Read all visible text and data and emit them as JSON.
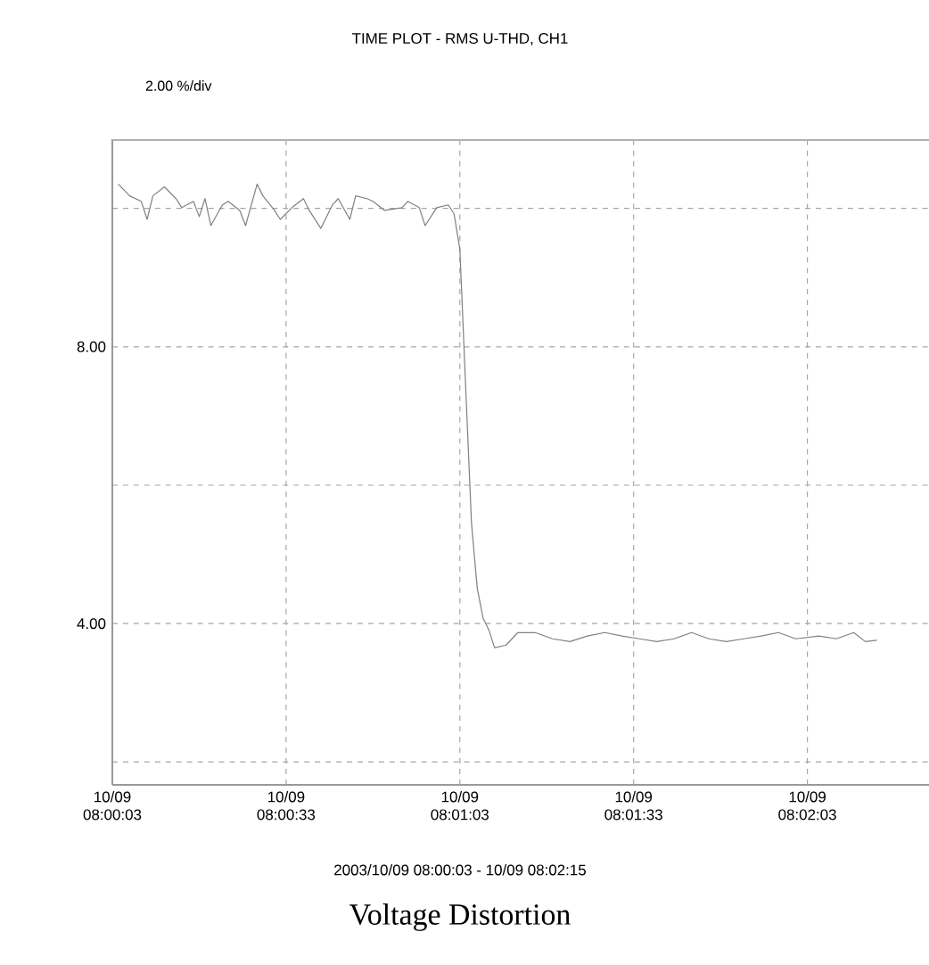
{
  "chart_data": {
    "type": "line",
    "title": "TIME PLOT - RMS  U-THD, CH1",
    "annotations": [
      "2.00 %/div",
      "2003/10/09 08:00:03 - 10/09 08:02:15",
      "Voltage Distortion"
    ],
    "xlim": [
      "2003-10-09T08:00:03",
      "2003-10-09T08:02:24"
    ],
    "ylim": [
      1.67,
      11
    ],
    "xticks": [
      {
        "value": "2003-10-09T08:00:03",
        "label": "10/09 08:00:03"
      },
      {
        "value": "2003-10-09T08:00:33",
        "label": "10/09 08:00:33"
      },
      {
        "value": "2003-10-09T08:01:03",
        "label": "10/09 08:01:03"
      },
      {
        "value": "2003-10-09T08:01:33",
        "label": "10/09 08:01:33"
      },
      {
        "value": "2003-10-09T08:02:03",
        "label": "10/09 08:02:03"
      }
    ],
    "yticks": [
      {
        "value": 2,
        "label": null
      },
      {
        "value": 4,
        "label": "4.00"
      },
      {
        "value": 6,
        "label": null
      },
      {
        "value": 8,
        "label": "8.00"
      },
      {
        "value": 10,
        "label": null
      }
    ],
    "grid": true,
    "marker": "none",
    "line_style": "solid",
    "series": [
      {
        "color": "#808080",
        "x": [
          "2003-10-09T08:00:04",
          "2003-10-09T08:00:06",
          "2003-10-09T08:00:08",
          "2003-10-09T08:00:09",
          "2003-10-09T08:00:10",
          "2003-10-09T08:00:12",
          "2003-10-09T08:00:14",
          "2003-10-09T08:00:15",
          "2003-10-09T08:00:17",
          "2003-10-09T08:00:18",
          "2003-10-09T08:00:19",
          "2003-10-09T08:00:20",
          "2003-10-09T08:00:22",
          "2003-10-09T08:00:23",
          "2003-10-09T08:00:25",
          "2003-10-09T08:00:26",
          "2003-10-09T08:00:28",
          "2003-10-09T08:00:29",
          "2003-10-09T08:00:31",
          "2003-10-09T08:00:32",
          "2003-10-09T08:00:34",
          "2003-10-09T08:00:36",
          "2003-10-09T08:00:37",
          "2003-10-09T08:00:39",
          "2003-10-09T08:00:41",
          "2003-10-09T08:00:42",
          "2003-10-09T08:00:44",
          "2003-10-09T08:00:45",
          "2003-10-09T08:00:47",
          "2003-10-09T08:00:48",
          "2003-10-09T08:00:50",
          "2003-10-09T08:00:53",
          "2003-10-09T08:00:54",
          "2003-10-09T08:00:56",
          "2003-10-09T08:00:57",
          "2003-10-09T08:00:59",
          "2003-10-09T08:01:01",
          "2003-10-09T08:01:02",
          "2003-10-09T08:01:03",
          "2003-10-09T08:01:04",
          "2003-10-09T08:01:05",
          "2003-10-09T08:01:06",
          "2003-10-09T08:01:07",
          "2003-10-09T08:01:08",
          "2003-10-09T08:01:09",
          "2003-10-09T08:01:11",
          "2003-10-09T08:01:13",
          "2003-10-09T08:01:16",
          "2003-10-09T08:01:19",
          "2003-10-09T08:01:22",
          "2003-10-09T08:01:25",
          "2003-10-09T08:01:28",
          "2003-10-09T08:01:31",
          "2003-10-09T08:01:34",
          "2003-10-09T08:01:37",
          "2003-10-09T08:01:40",
          "2003-10-09T08:01:43",
          "2003-10-09T08:01:46",
          "2003-10-09T08:01:49",
          "2003-10-09T08:01:52",
          "2003-10-09T08:01:55",
          "2003-10-09T08:01:58",
          "2003-10-09T08:02:01",
          "2003-10-09T08:02:05",
          "2003-10-09T08:02:08",
          "2003-10-09T08:02:11",
          "2003-10-09T08:02:13",
          "2003-10-09T08:02:15"
        ],
        "values": [
          10.35,
          10.18,
          10.1,
          9.84,
          10.18,
          10.31,
          10.14,
          10.01,
          10.1,
          9.88,
          10.14,
          9.75,
          10.05,
          10.1,
          9.97,
          9.75,
          10.35,
          10.18,
          9.97,
          9.84,
          10.01,
          10.14,
          9.97,
          9.71,
          10.05,
          10.14,
          9.84,
          10.18,
          10.14,
          10.1,
          9.97,
          10.01,
          10.1,
          10.01,
          9.75,
          10.01,
          10.05,
          9.92,
          9.41,
          7.43,
          5.46,
          4.51,
          4.08,
          3.91,
          3.65,
          3.69,
          3.87,
          3.87,
          3.78,
          3.74,
          3.82,
          3.87,
          3.82,
          3.78,
          3.74,
          3.78,
          3.87,
          3.78,
          3.74,
          3.78,
          3.82,
          3.87,
          3.78,
          3.82,
          3.78,
          3.87,
          3.74,
          3.76
        ]
      }
    ]
  }
}
